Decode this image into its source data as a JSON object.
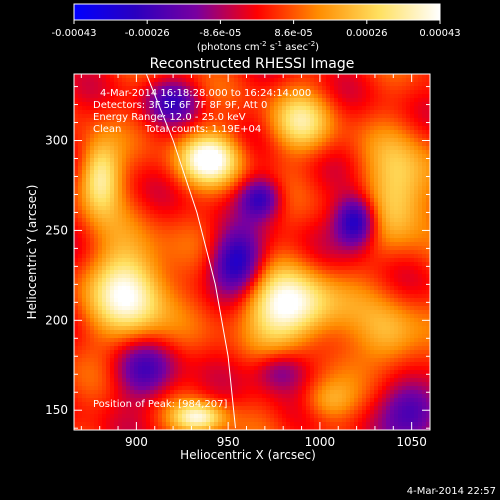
{
  "colorbar": {
    "ticks": [
      "-0.00043",
      "-0.00026",
      "-8.6e-05",
      "8.6e-05",
      "0.00026",
      "0.00043"
    ],
    "unit_main": "(photons cm",
    "unit_exp1": "-2",
    "unit_mid": " s",
    "unit_exp2": "-1",
    "unit_end": " asec",
    "unit_exp3": "-2",
    "unit_close": ")",
    "colors": [
      "#0000ff",
      "#2a00c0",
      "#7800a0",
      "#ff0000",
      "#ff8c00",
      "#ffe060",
      "#ffffff"
    ]
  },
  "chart_data": {
    "type": "heatmap",
    "title": "Reconstructed RHESSI Image",
    "xlabel": "Heliocentric X (arcsec)",
    "ylabel": "Heliocentric Y (arcsec)",
    "xlim": [
      866,
      1060
    ],
    "ylim": [
      139,
      337
    ],
    "xticks": [
      900,
      950,
      1000,
      1050
    ],
    "yticks": [
      150,
      200,
      250,
      300
    ],
    "clim": [
      -0.00043,
      0.00043
    ],
    "annotations": [
      "4-Mar-2014 16:18:28.000 to 16:24:14.000",
      "Detectors: 3F 5F 6F 7F 8F 9F, Att 0",
      "Energy Range: 12.0 - 25.0 keV",
      "Clean",
      "Total counts: 1.19E+04",
      "Position of Peak: [984,207]"
    ],
    "sources": [
      {
        "x": 984,
        "y": 207,
        "rx": 18,
        "ry": 14,
        "value": 0.00043
      },
      {
        "x": 897,
        "y": 216,
        "rx": 14,
        "ry": 20,
        "value": 0.0004
      },
      {
        "x": 940,
        "y": 290,
        "rx": 12,
        "ry": 10,
        "value": 0.0004
      },
      {
        "x": 880,
        "y": 280,
        "rx": 8,
        "ry": 14,
        "value": 0.00034
      },
      {
        "x": 934,
        "y": 146,
        "rx": 10,
        "ry": 6,
        "value": 0.00035
      },
      {
        "x": 1045,
        "y": 272,
        "rx": 14,
        "ry": 20,
        "value": 0.00028
      },
      {
        "x": 990,
        "y": 310,
        "rx": 12,
        "ry": 12,
        "value": 0.00025
      },
      {
        "x": 1038,
        "y": 190,
        "rx": 12,
        "ry": 14,
        "value": 0.00022
      },
      {
        "x": 1004,
        "y": 155,
        "rx": 10,
        "ry": 8,
        "value": 0.00016
      },
      {
        "x": 1020,
        "y": 255,
        "rx": 8,
        "ry": 10,
        "value": -0.00042
      },
      {
        "x": 955,
        "y": 232,
        "rx": 10,
        "ry": 12,
        "value": -0.00036
      },
      {
        "x": 968,
        "y": 268,
        "rx": 8,
        "ry": 8,
        "value": -0.0003
      },
      {
        "x": 905,
        "y": 172,
        "rx": 12,
        "ry": 12,
        "value": -0.00026
      },
      {
        "x": 1052,
        "y": 150,
        "rx": 12,
        "ry": 12,
        "value": -0.0003
      },
      {
        "x": 920,
        "y": 322,
        "rx": 10,
        "ry": 8,
        "value": -0.00024
      },
      {
        "x": 978,
        "y": 172,
        "rx": 10,
        "ry": 8,
        "value": -0.0002
      }
    ],
    "limb_path": [
      [
        905,
        338
      ],
      [
        920,
        300
      ],
      [
        933,
        260
      ],
      [
        943,
        220
      ],
      [
        950,
        180
      ],
      [
        954,
        140
      ]
    ]
  },
  "footer_date": "4-Mar-2014 22:57"
}
